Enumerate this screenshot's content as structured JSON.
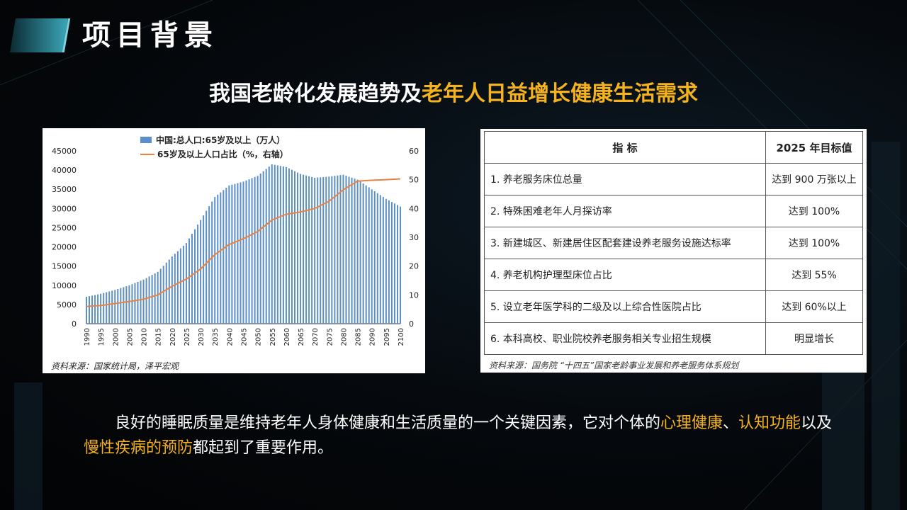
{
  "header": {
    "title": "项目背景"
  },
  "subtitle": {
    "part1": "我国老龄化发展趋势及",
    "part2": "老年人日益增长健康生活需求"
  },
  "chart_data": {
    "type": "bar",
    "title": "",
    "legend": [
      "中国:总人口:65岁及以上（万人）",
      "65岁及以上人口占比（%，右轴）"
    ],
    "x_ticks": [
      "1990",
      "1995",
      "2000",
      "2005",
      "2010",
      "2015",
      "2020",
      "2025",
      "2030",
      "2035",
      "2040",
      "2045",
      "2050",
      "2055",
      "2060",
      "2065",
      "2070",
      "2075",
      "2080",
      "2085",
      "2090",
      "2095",
      "2100"
    ],
    "ylim_left": [
      0,
      45000
    ],
    "y_ticks_left": [
      "0",
      "5000",
      "10000",
      "15000",
      "20000",
      "25000",
      "30000",
      "35000",
      "40000",
      "45000"
    ],
    "ylim_right": [
      0,
      60
    ],
    "y_ticks_right": [
      "0",
      "10",
      "20",
      "30",
      "40",
      "50",
      "60"
    ],
    "series": [
      {
        "name": "中国:总人口:65岁及以上（万人）",
        "type": "bar",
        "x": [
          1990,
          1995,
          2000,
          2005,
          2010,
          2015,
          2020,
          2025,
          2030,
          2035,
          2040,
          2045,
          2050,
          2055,
          2060,
          2065,
          2070,
          2075,
          2080,
          2085,
          2090,
          2095,
          2100
        ],
        "values": [
          7000,
          7800,
          8800,
          10000,
          11500,
          13500,
          17500,
          21000,
          27000,
          33000,
          36000,
          37000,
          38500,
          41500,
          40800,
          39000,
          38000,
          38300,
          38800,
          37500,
          35000,
          32500,
          30500
        ]
      },
      {
        "name": "65岁及以上人口占比（%，右轴）",
        "type": "line",
        "x": [
          1990,
          1995,
          2000,
          2005,
          2010,
          2015,
          2020,
          2025,
          2030,
          2035,
          2040,
          2045,
          2050,
          2055,
          2060,
          2065,
          2070,
          2075,
          2080,
          2085,
          2090,
          2095,
          2100
        ],
        "values": [
          6,
          6.3,
          7,
          7.7,
          8.5,
          10,
          13,
          15.5,
          19,
          24,
          27.5,
          29.5,
          32,
          36,
          38,
          38.8,
          40,
          42.5,
          46.5,
          49.5,
          49.8,
          50,
          50.3
        ]
      }
    ],
    "source": "资料来源：国家统计局，泽平宏观",
    "colors": {
      "bar": "#5b8fc7",
      "line": "#e8823e"
    }
  },
  "table": {
    "headers": [
      "指 标",
      "2025 年目标值"
    ],
    "rows": [
      [
        "1. 养老服务床位总量",
        "达到 900 万张以上"
      ],
      [
        "2. 特殊困难老年人月探访率",
        "达到 100%"
      ],
      [
        "3. 新建城区、新建居住区配套建设养老服务设施达标率",
        "达到 100%"
      ],
      [
        "4. 养老机构护理型床位占比",
        "达到 55%"
      ],
      [
        "5. 设立老年医学科的二级及以上综合性医院占比",
        "达到 60%以上"
      ],
      [
        "6. 本科高校、职业院校养老服务相关专业招生规模",
        "明显增长"
      ]
    ],
    "source": "资料来源：国务院 “十四五”国家老龄事业发展和养老服务体系规划"
  },
  "body": {
    "t1": "良好的睡眠质量是维持老年人身体健康和生活质量的一个关键因素，它对个体的",
    "h1": "心理健康",
    "t2": "、",
    "h2": "认知功能",
    "t3": "以及",
    "h3": "慢性疾病的预防",
    "t4": "都起到了重要作用。"
  }
}
